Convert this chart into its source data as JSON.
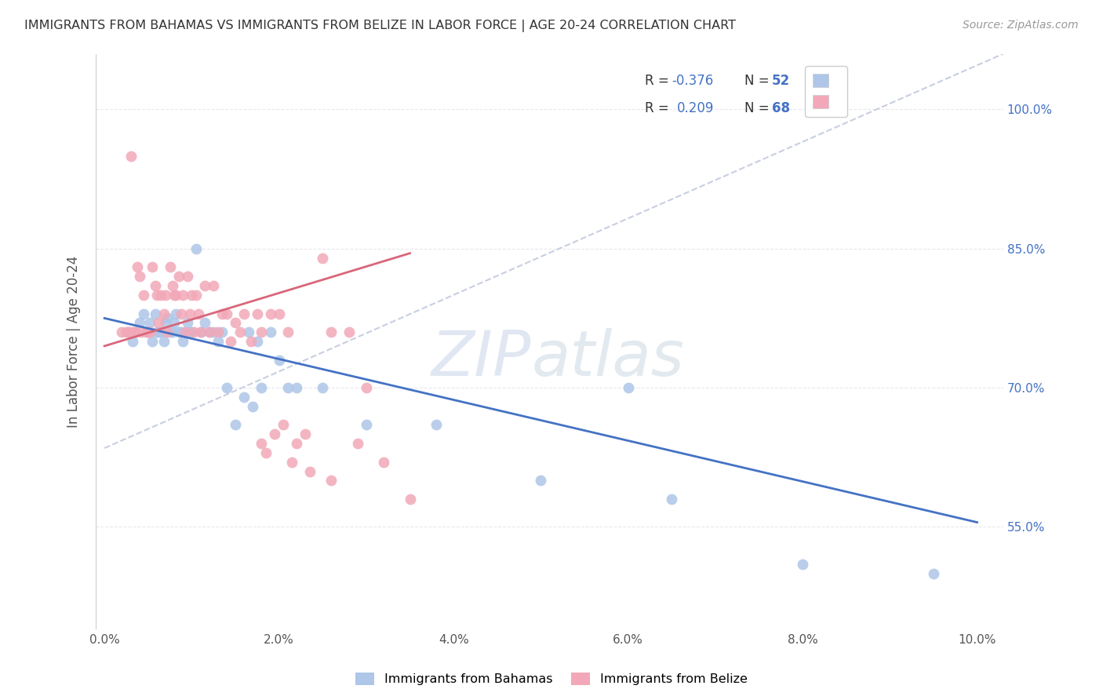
{
  "title": "IMMIGRANTS FROM BAHAMAS VS IMMIGRANTS FROM BELIZE IN LABOR FORCE | AGE 20-24 CORRELATION CHART",
  "source": "Source: ZipAtlas.com",
  "ylabel": "In Labor Force | Age 20-24",
  "yaxis_labels": [
    "55.0%",
    "70.0%",
    "85.0%",
    "100.0%"
  ],
  "yaxis_values": [
    0.55,
    0.7,
    0.85,
    1.0
  ],
  "xlim": [
    -0.001,
    0.103
  ],
  "ylim": [
    0.44,
    1.06
  ],
  "watermark_zip": "ZIP",
  "watermark_atlas": "atlas",
  "legend_r_blue": "-0.376",
  "legend_n_blue": "52",
  "legend_r_pink": "0.209",
  "legend_n_pink": "68",
  "blue_color": "#aec6e8",
  "pink_color": "#f2a8b8",
  "line_blue_color": "#4472c4",
  "line_pink_color": "#d9667a",
  "line_dashed_color": "#c8cfe0",
  "text_color": "#555555",
  "grid_color": "#e8e8ee",
  "legend_text_color": "#333333",
  "r_value_color": "#4472c4",
  "bahamas_x": [
    0.0028,
    0.0032,
    0.0035,
    0.004,
    0.0045,
    0.0048,
    0.0052,
    0.0055,
    0.0058,
    0.006,
    0.0062,
    0.0065,
    0.0068,
    0.007,
    0.0072,
    0.0075,
    0.0078,
    0.008,
    0.0082,
    0.0085,
    0.0088,
    0.009,
    0.0092,
    0.0095,
    0.0098,
    0.01,
    0.0105,
    0.011,
    0.0115,
    0.012,
    0.0125,
    0.013,
    0.0135,
    0.014,
    0.015,
    0.016,
    0.0165,
    0.017,
    0.0175,
    0.018,
    0.019,
    0.02,
    0.021,
    0.022,
    0.025,
    0.03,
    0.038,
    0.05,
    0.06,
    0.065,
    0.08,
    0.095
  ],
  "bahamas_y": [
    0.76,
    0.75,
    0.76,
    0.77,
    0.78,
    0.76,
    0.77,
    0.75,
    0.78,
    0.76,
    0.76,
    0.76,
    0.75,
    0.77,
    0.775,
    0.76,
    0.76,
    0.77,
    0.78,
    0.76,
    0.76,
    0.75,
    0.76,
    0.77,
    0.76,
    0.76,
    0.85,
    0.76,
    0.77,
    0.76,
    0.76,
    0.75,
    0.76,
    0.7,
    0.66,
    0.69,
    0.76,
    0.68,
    0.75,
    0.7,
    0.76,
    0.73,
    0.7,
    0.7,
    0.7,
    0.66,
    0.66,
    0.6,
    0.7,
    0.58,
    0.51,
    0.5
  ],
  "belize_x": [
    0.002,
    0.0025,
    0.0028,
    0.003,
    0.0032,
    0.0035,
    0.0038,
    0.004,
    0.0042,
    0.0045,
    0.0048,
    0.005,
    0.0052,
    0.0055,
    0.0058,
    0.006,
    0.0062,
    0.0065,
    0.0068,
    0.007,
    0.0072,
    0.0075,
    0.0078,
    0.008,
    0.0082,
    0.0085,
    0.0088,
    0.009,
    0.0092,
    0.0095,
    0.0098,
    0.01,
    0.0102,
    0.0105,
    0.0108,
    0.011,
    0.0115,
    0.012,
    0.0125,
    0.013,
    0.0135,
    0.014,
    0.0145,
    0.015,
    0.0155,
    0.016,
    0.0168,
    0.0175,
    0.018,
    0.019,
    0.02,
    0.021,
    0.022,
    0.023,
    0.025,
    0.026,
    0.028,
    0.029,
    0.03,
    0.032,
    0.018,
    0.0185,
    0.0195,
    0.0205,
    0.0215,
    0.0235,
    0.026,
    0.035
  ],
  "belize_y": [
    0.76,
    0.76,
    0.76,
    0.95,
    0.76,
    0.76,
    0.83,
    0.82,
    0.76,
    0.8,
    0.76,
    0.76,
    0.76,
    0.83,
    0.81,
    0.8,
    0.77,
    0.8,
    0.78,
    0.8,
    0.76,
    0.83,
    0.81,
    0.8,
    0.8,
    0.82,
    0.78,
    0.8,
    0.76,
    0.82,
    0.78,
    0.8,
    0.76,
    0.8,
    0.78,
    0.76,
    0.81,
    0.76,
    0.81,
    0.76,
    0.78,
    0.78,
    0.75,
    0.77,
    0.76,
    0.78,
    0.75,
    0.78,
    0.76,
    0.78,
    0.78,
    0.76,
    0.64,
    0.65,
    0.84,
    0.76,
    0.76,
    0.64,
    0.7,
    0.62,
    0.64,
    0.63,
    0.65,
    0.66,
    0.62,
    0.61,
    0.6,
    0.58
  ]
}
